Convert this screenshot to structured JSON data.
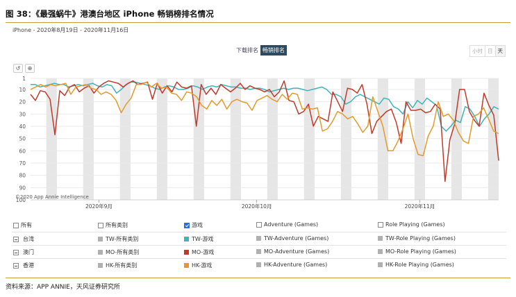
{
  "figure_title": "图 38：《最强蜗牛》港澳台地区 iPhone 畅销榜排名情况",
  "subtitle": "iPhone - 2020年8月19日 - 2020年11月16日",
  "toggle": {
    "downloads": "下载排名",
    "grossing": "畅销排名"
  },
  "time_toggle": {
    "hour": "小时",
    "day": "日",
    "week": "天"
  },
  "tools": {
    "reset": "↺",
    "zoom": "⊕"
  },
  "source": "资料来源：APP ANNIE，天风证券研究所",
  "colors": {
    "tw": "#3fb3b8",
    "mo": "#c0392b",
    "hk": "#e39a2a",
    "gray": "#b0b0b0",
    "weekend": "#e6e6e6",
    "grid": "#e9e9e9"
  },
  "legend": {
    "header": [
      "所有",
      "所有类别",
      "游戏",
      "Adventure (Games)",
      "Role Playing (Games)"
    ],
    "header_checked": [
      false,
      false,
      true,
      false,
      false
    ],
    "rows": [
      {
        "region": "台湾",
        "items": [
          "TW-所有类别",
          "TW-游戏",
          "TW-Adventure (Games)",
          "TW-Role Playing (Games)"
        ]
      },
      {
        "region": "澳门",
        "items": [
          "MO-所有类别",
          "MO-游戏",
          "MO-Adventure (Games)",
          "MO-Role Playing (Games)"
        ]
      },
      {
        "region": "香港",
        "items": [
          "HK-所有类别",
          "HK-游戏",
          "HK-Adventure (Games)",
          "HK-Role Playing (Games)"
        ]
      }
    ]
  },
  "chart_data": {
    "type": "line",
    "y_reversed": true,
    "ylim": [
      100,
      1
    ],
    "yticks": [
      1,
      10,
      20,
      30,
      40,
      50,
      60,
      70,
      80,
      90,
      100
    ],
    "x_start": "2020-08-19",
    "x_end": "2020-11-16",
    "xticks": [
      {
        "label": "2020年9月",
        "date": "2020-09-01"
      },
      {
        "label": "2020年10月",
        "date": "2020-10-01"
      },
      {
        "label": "2020年11月",
        "date": "2020-11-01"
      }
    ],
    "watermark": "©2020 App Annie Intelligence",
    "series": [
      {
        "name": "TW-游戏",
        "color_key": "tw",
        "values": [
          6,
          6,
          8,
          7,
          6,
          5,
          6,
          6,
          8,
          7,
          6,
          7,
          6,
          5,
          7,
          8,
          6,
          7,
          13,
          10,
          6,
          4,
          4,
          5,
          6,
          7,
          9,
          10,
          8,
          7,
          8,
          10,
          10,
          9,
          7,
          8,
          10,
          8,
          7,
          8,
          6,
          7,
          8,
          8,
          9,
          9,
          10,
          9,
          9,
          10,
          12,
          11,
          10,
          9,
          10,
          9,
          9,
          10,
          11,
          10,
          9,
          8,
          10,
          14,
          14,
          16,
          22,
          20,
          16,
          14,
          16,
          18,
          20,
          22,
          17,
          18,
          24,
          26,
          30,
          20,
          25,
          19,
          22,
          17,
          20,
          23,
          40,
          44,
          40,
          35,
          37,
          24,
          26,
          32,
          40,
          34,
          30,
          24,
          26
        ]
      },
      {
        "name": "MO-游戏",
        "color_key": "mo",
        "values": [
          14,
          19,
          11,
          12,
          18,
          47,
          11,
          15,
          8,
          6,
          12,
          9,
          7,
          13,
          8,
          5,
          3,
          4,
          5,
          8,
          5,
          3,
          6,
          5,
          4,
          18,
          5,
          13,
          7,
          12,
          4,
          8,
          9,
          7,
          40,
          6,
          14,
          9,
          14,
          6,
          9,
          12,
          9,
          5,
          10,
          7,
          9,
          10,
          12,
          10,
          16,
          12,
          3,
          19,
          20,
          30,
          28,
          22,
          40,
          32,
          34,
          36,
          12,
          20,
          28,
          9,
          10,
          13,
          6,
          22,
          46,
          36,
          32,
          28,
          26,
          37,
          54,
          20,
          27,
          27,
          26,
          29,
          28,
          22,
          26,
          85,
          51,
          38,
          10,
          10,
          28,
          35,
          40,
          13,
          23,
          31,
          68
        ]
      },
      {
        "name": "HK-游戏",
        "color_key": "hk",
        "values": [
          10,
          8,
          6,
          8,
          6,
          7,
          6,
          5,
          14,
          8,
          7,
          6,
          9,
          10,
          14,
          12,
          14,
          19,
          29,
          22,
          17,
          6,
          6,
          4,
          8,
          5,
          9,
          8,
          13,
          14,
          19,
          12,
          13,
          16,
          23,
          26,
          19,
          23,
          18,
          26,
          20,
          18,
          20,
          21,
          27,
          19,
          17,
          15,
          18,
          20,
          14,
          18,
          13,
          14,
          26,
          25,
          26,
          25,
          44,
          42,
          36,
          28,
          30,
          34,
          32,
          38,
          45,
          40,
          16,
          28,
          40,
          60,
          60,
          52,
          42,
          30,
          50,
          63,
          64,
          48,
          40,
          20,
          32,
          30,
          35,
          45,
          52,
          54,
          32,
          30,
          25,
          34,
          44,
          46
        ]
      }
    ]
  }
}
